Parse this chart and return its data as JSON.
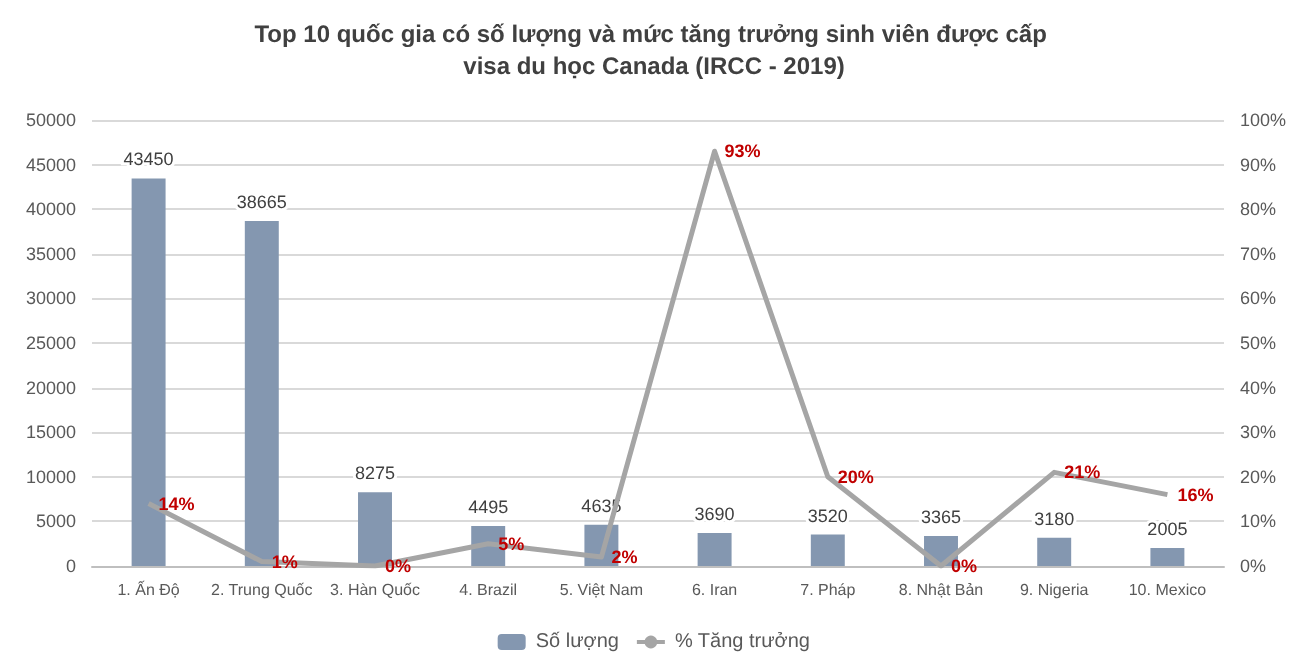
{
  "chart_data": {
    "type": "bar",
    "title": "Top 10 quốc gia có số lượng và mức tăng trưởng sinh viên được cấp visa du học Canada (IRCC - 2019)",
    "categories": [
      "1. Ấn Độ",
      "2. Trung Quốc",
      "3. Hàn Quốc",
      "4. Brazil",
      "5. Việt Nam",
      "6. Iran",
      "7. Pháp",
      "8. Nhật Bản",
      "9. Nigeria",
      "10. Mexico"
    ],
    "series": [
      {
        "name": "Số lượng",
        "color": "#8497b0",
        "values": [
          43450,
          38665,
          8275,
          4495,
          4635,
          3690,
          3520,
          3365,
          3180,
          2005
        ],
        "value_labels": [
          "43450",
          "38665",
          "8275",
          "4495",
          "4635",
          "3690",
          "3520",
          "3365",
          "3180",
          "2005"
        ]
      },
      {
        "name": "% Tăng trưởng",
        "type": "line",
        "axis": "y2",
        "color": "#a5a5a5",
        "values": [
          14,
          1,
          0,
          5,
          2,
          93,
          20,
          0,
          21,
          16
        ],
        "value_labels": [
          "14%",
          "1%",
          "0%",
          "5%",
          "2%",
          "93%",
          "20%",
          "0%",
          "21%",
          "16%"
        ]
      }
    ],
    "ylim": [
      0,
      50000
    ],
    "yticks": [
      0,
      5000,
      10000,
      15000,
      20000,
      25000,
      30000,
      35000,
      40000,
      45000,
      50000
    ],
    "y2lim": [
      0,
      100
    ],
    "y2ticks": [
      {
        "value": 0,
        "label": "0%"
      },
      {
        "value": 10,
        "label": "10%"
      },
      {
        "value": 20,
        "label": "20%"
      },
      {
        "value": 30,
        "label": "30%"
      },
      {
        "value": 40,
        "label": "40%"
      },
      {
        "value": 50,
        "label": "50%"
      },
      {
        "value": 60,
        "label": "60%"
      },
      {
        "value": 70,
        "label": "70%"
      },
      {
        "value": 80,
        "label": "80%"
      },
      {
        "value": 90,
        "label": "90%"
      },
      {
        "value": 100,
        "label": "100%"
      }
    ],
    "grid": "y",
    "legend": "bottom",
    "marker": "none",
    "line_style": "solid"
  }
}
